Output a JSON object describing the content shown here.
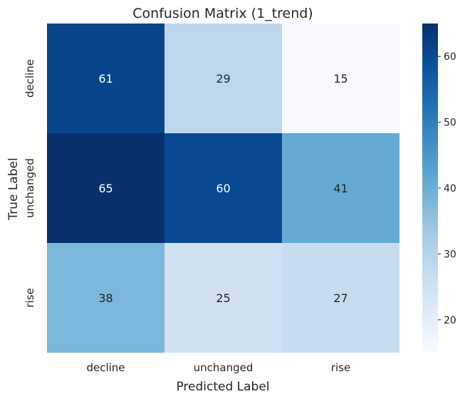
{
  "chart_data": {
    "type": "heatmap",
    "title": "Confusion Matrix (1_trend)",
    "xlabel": "Predicted Label",
    "ylabel": "True Label",
    "x_categories": [
      "decline",
      "unchanged",
      "rise"
    ],
    "y_categories": [
      "decline",
      "unchanged",
      "rise"
    ],
    "values": [
      [
        61,
        29,
        15
      ],
      [
        65,
        60,
        41
      ],
      [
        38,
        25,
        27
      ]
    ],
    "color_range": [
      15,
      65
    ],
    "colormap": "Blues",
    "colorbar_ticks": [
      20,
      30,
      40,
      50,
      60
    ],
    "colors": {
      "low": "#f7fbff",
      "high": "#08306b",
      "dark_text": "#262626",
      "light_text": "#ffffff"
    }
  }
}
